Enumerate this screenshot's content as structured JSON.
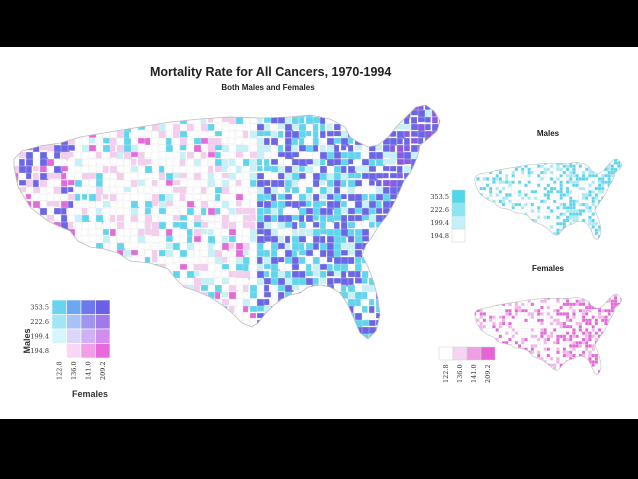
{
  "title": "Mortality Rate for All Cancers, 1970-1994",
  "subtitle": "Both Males and Females",
  "males_map": {
    "title": "Males",
    "legend_values": [
      "353.5",
      "222.6",
      "199.4",
      "194.8"
    ],
    "legend_colors": [
      "#4ed8ea",
      "#8ae6f2",
      "#c2f2f8",
      "#ffffff"
    ]
  },
  "females_map": {
    "title": "Females",
    "legend_values": [
      "122.8",
      "136.0",
      "141.0",
      "209.2"
    ],
    "legend_colors": [
      "#ffffff",
      "#f7d4f2",
      "#ee9fe4",
      "#e565d8"
    ]
  },
  "bivariate_legend": {
    "y_label": "Males",
    "x_label": "Females",
    "y_values": [
      "353.5",
      "222.6",
      "199.4",
      "194.8"
    ],
    "x_values": [
      "122.8",
      "136.0",
      "141.0",
      "209.2"
    ],
    "grid_colors": [
      [
        "#6ad4f0",
        "#6ca8f2",
        "#6b79ec",
        "#6b5fe6"
      ],
      [
        "#a0e6f6",
        "#a9c2f6",
        "#9d95f0",
        "#a07ae8"
      ],
      [
        "#d7f6fb",
        "#dcd6fb",
        "#cfb2f5",
        "#d28ded"
      ],
      [
        "#ffffff",
        "#f8d6f4",
        "#f09fe6",
        "#e968dc"
      ]
    ]
  },
  "colors": {
    "cyan": "#5fd6ee",
    "blue": "#6b66e6",
    "violet": "#8a5ae3",
    "pink": "#e56ad9",
    "light_pink": "#f5cdee",
    "light_cyan": "#c7f1f8",
    "outline": "#c9c9c9"
  }
}
